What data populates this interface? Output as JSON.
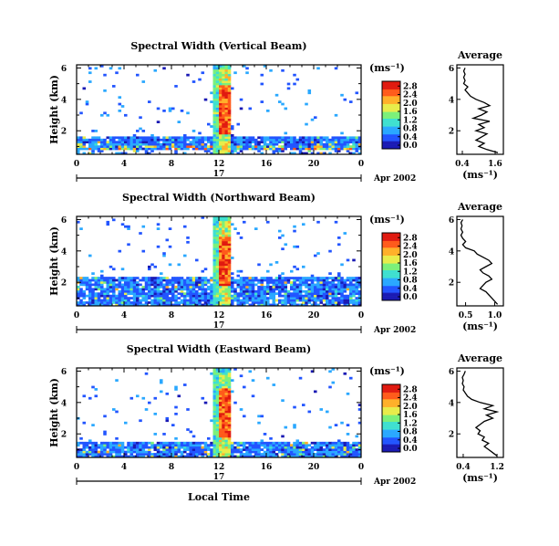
{
  "common": {
    "unit_label": "(ms⁻¹)",
    "day_label": "17",
    "month_label": "Apr 2002",
    "xlabel": "Local Time",
    "ylabel": "Height (km)",
    "avg_title": "Average",
    "x_ticks": [
      "0",
      "4",
      "8",
      "12",
      "16",
      "20",
      "0"
    ],
    "x_tick_values": [
      0,
      4,
      8,
      12,
      16,
      20,
      24
    ],
    "y_ticks": [
      "2",
      "4",
      "6"
    ],
    "y_tick_values": [
      2,
      4,
      6
    ],
    "colorbar_ticks": [
      "0.0",
      "0.4",
      "0.8",
      "1.2",
      "1.6",
      "2.0",
      "2.4",
      "2.8"
    ],
    "colorbar_range": [
      0.0,
      3.0
    ],
    "colors": [
      "#1a1ab4",
      "#2255ff",
      "#2aa8ff",
      "#3fe0d0",
      "#7cf07a",
      "#e8ec4a",
      "#ffb02a",
      "#ff5a1a",
      "#e01a10"
    ]
  },
  "chart_data": [
    {
      "type": "heatmap",
      "title": "Spectral Width (Vertical Beam)",
      "xlabel": "Local Time",
      "ylabel": "Height (km)",
      "xlim": [
        0,
        24
      ],
      "ylim": [
        0.5,
        6.2
      ],
      "colorbar_ticks": [
        "0.0",
        "0.4",
        "0.8",
        "1.2",
        "1.6",
        "2.0",
        "2.4",
        "2.8"
      ],
      "colorbar_label": "(ms⁻¹)",
      "average_profile": {
        "title": "Average",
        "xlabel": "(ms⁻¹)",
        "x_ticks": [
          "0.4",
          "1.6"
        ],
        "x_tick_values": [
          0.4,
          1.6
        ],
        "xlim": [
          0.2,
          1.9
        ],
        "ylim": [
          0.5,
          6.2
        ],
        "heights": [
          0.6,
          0.8,
          1.0,
          1.2,
          1.4,
          1.6,
          1.8,
          2.0,
          2.2,
          2.4,
          2.6,
          2.8,
          3.0,
          3.2,
          3.4,
          3.6,
          3.8,
          4.0,
          4.2,
          4.4,
          4.6,
          4.8,
          5.0,
          5.2,
          5.4,
          5.6,
          5.8,
          6.0
        ],
        "values": [
          1.7,
          1.3,
          1.0,
          1.2,
          0.9,
          1.1,
          1.3,
          0.9,
          1.2,
          1.0,
          1.4,
          0.8,
          1.1,
          1.3,
          1.0,
          1.4,
          1.2,
          0.9,
          0.7,
          0.6,
          0.5,
          0.6,
          0.45,
          0.5,
          0.45,
          0.5,
          0.45,
          0.5
        ]
      }
    },
    {
      "type": "heatmap",
      "title": "Spectral Width (Northward Beam)",
      "xlabel": "Local Time",
      "ylabel": "Height (km)",
      "xlim": [
        0,
        24
      ],
      "ylim": [
        0.5,
        6.2
      ],
      "colorbar_ticks": [
        "0.0",
        "0.4",
        "0.8",
        "1.2",
        "1.6",
        "2.0",
        "2.4",
        "2.8"
      ],
      "colorbar_label": "(ms⁻¹)",
      "average_profile": {
        "title": "Average",
        "xlabel": "(ms⁻¹)",
        "x_ticks": [
          "0.5",
          "1.0"
        ],
        "x_tick_values": [
          0.5,
          1.0
        ],
        "xlim": [
          0.35,
          1.15
        ],
        "ylim": [
          0.5,
          6.2
        ],
        "heights": [
          0.6,
          0.8,
          1.0,
          1.2,
          1.4,
          1.6,
          1.8,
          2.0,
          2.2,
          2.4,
          2.6,
          2.8,
          3.0,
          3.2,
          3.4,
          3.6,
          3.8,
          4.0,
          4.2,
          4.4,
          4.6,
          4.8,
          5.0,
          5.2,
          5.4,
          5.6,
          5.8,
          6.0
        ],
        "values": [
          1.05,
          1.0,
          0.95,
          0.9,
          0.85,
          0.75,
          0.8,
          0.85,
          0.95,
          0.9,
          0.8,
          0.75,
          0.85,
          0.95,
          0.9,
          0.8,
          0.7,
          0.65,
          0.5,
          0.45,
          0.5,
          0.45,
          0.42,
          0.45,
          0.42,
          0.44,
          0.42,
          0.45
        ]
      }
    },
    {
      "type": "heatmap",
      "title": "Spectral Width (Eastward Beam)",
      "xlabel": "Local Time",
      "ylabel": "Height (km)",
      "xlim": [
        0,
        24
      ],
      "ylim": [
        0.5,
        6.2
      ],
      "colorbar_ticks": [
        "0.0",
        "0.4",
        "0.8",
        "1.2",
        "1.6",
        "2.0",
        "2.4",
        "2.8"
      ],
      "colorbar_label": "(ms⁻¹)",
      "average_profile": {
        "title": "Average",
        "xlabel": "(ms⁻¹)",
        "x_ticks": [
          "0.4",
          "1.2"
        ],
        "x_tick_values": [
          0.4,
          1.2
        ],
        "xlim": [
          0.25,
          1.35
        ],
        "ylim": [
          0.5,
          6.2
        ],
        "heights": [
          0.6,
          0.8,
          1.0,
          1.2,
          1.4,
          1.6,
          1.8,
          2.0,
          2.2,
          2.4,
          2.6,
          2.8,
          3.0,
          3.2,
          3.4,
          3.6,
          3.8,
          4.0,
          4.2,
          4.4,
          4.6,
          4.8,
          5.0,
          5.2,
          5.4,
          5.6,
          5.8,
          6.0
        ],
        "values": [
          1.2,
          1.1,
          1.0,
          0.9,
          1.0,
          0.85,
          0.9,
          0.75,
          0.8,
          0.7,
          0.8,
          0.9,
          1.1,
          0.95,
          1.2,
          0.9,
          1.1,
          0.8,
          0.6,
          0.5,
          0.45,
          0.4,
          0.42,
          0.38,
          0.4,
          0.38,
          0.42,
          0.45
        ]
      }
    }
  ]
}
